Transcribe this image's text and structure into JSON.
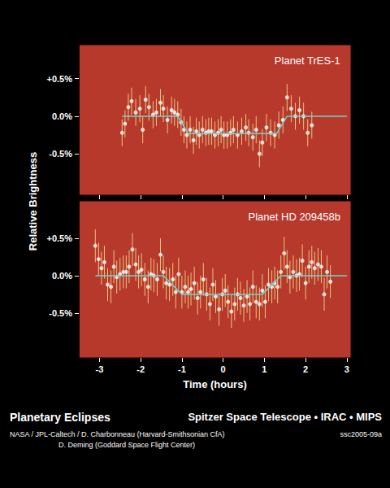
{
  "ylabel": "Relative Brightness",
  "footer": {
    "title": "Planetary Eclipses",
    "instrument": "Spitzer Space Telescope • IRAC • MIPS",
    "credits": [
      "NASA / JPL-Caltech / D. Charbonneau (Harvard-Smithsonian CfA)",
      "D. Deming (Goddard Space Flight Center)"
    ],
    "id": "ssc2005-09a"
  },
  "chart_data": [
    {
      "type": "scatter",
      "title": "Planet TrES-1",
      "xlim": [
        -3.5,
        3.1
      ],
      "xticks": [
        -3,
        -2,
        -1,
        0,
        1,
        2,
        3
      ],
      "ylim": [
        -1.05,
        0.95
      ],
      "yticks": [
        {
          "value": 0.5,
          "label": "+0.5%"
        },
        {
          "value": 0,
          "label": "0.0%"
        },
        {
          "value": -0.5,
          "label": "-0.5%"
        }
      ],
      "grid": false,
      "tick_labels": "y",
      "series": [
        {
          "type": "scatter",
          "marker": "circle",
          "color": "#ffffff",
          "x": [
            -2.45,
            -2.38,
            -2.3,
            -2.22,
            -2.12,
            -2.02,
            -1.95,
            -1.88,
            -1.8,
            -1.7,
            -1.62,
            -1.52,
            -1.45,
            -1.35,
            -1.25,
            -1.18,
            -1.1,
            -1.02,
            -0.95,
            -0.88,
            -0.8,
            -0.72,
            -0.65,
            -0.58,
            -0.5,
            -0.42,
            -0.35,
            -0.28,
            -0.2,
            -0.12,
            -0.05,
            0.02,
            0.1,
            0.18,
            0.25,
            0.35,
            0.45,
            0.55,
            0.62,
            0.72,
            0.8,
            0.88,
            0.95,
            1.05,
            1.15,
            1.25,
            1.35,
            1.45,
            1.55,
            1.65,
            1.75,
            1.85,
            1.95,
            2.05,
            2.15
          ],
          "values": [
            -0.22,
            -0.1,
            0.12,
            0.2,
            0.05,
            0.1,
            -0.18,
            0.22,
            0.12,
            0.02,
            0.05,
            0.18,
            0.1,
            -0.05,
            0.08,
            0.05,
            0.02,
            -0.08,
            -0.18,
            -0.25,
            -0.18,
            -0.32,
            -0.2,
            -0.25,
            -0.18,
            -0.22,
            -0.2,
            -0.2,
            -0.25,
            -0.22,
            -0.18,
            -0.25,
            -0.25,
            -0.22,
            -0.18,
            -0.25,
            -0.2,
            -0.15,
            -0.22,
            -0.28,
            -0.18,
            -0.5,
            -0.35,
            -0.15,
            -0.22,
            -0.25,
            -0.12,
            -0.05,
            0.25,
            0.1,
            0,
            0.08,
            0,
            -0.22,
            -0.12
          ],
          "errors": [
            0.18,
            0.18,
            0.18,
            0.18,
            0.18,
            0.18,
            0.18,
            0.18,
            0.18,
            0.18,
            0.18,
            0.18,
            0.18,
            0.18,
            0.18,
            0.18,
            0.18,
            0.18,
            0.18,
            0.18,
            0.18,
            0.18,
            0.18,
            0.18,
            0.18,
            0.18,
            0.18,
            0.18,
            0.18,
            0.18,
            0.18,
            0.18,
            0.18,
            0.18,
            0.18,
            0.18,
            0.18,
            0.18,
            0.18,
            0.18,
            0.18,
            0.18,
            0.18,
            0.18,
            0.18,
            0.18,
            0.18,
            0.18,
            0.18,
            0.18,
            0.18,
            0.18,
            0.18,
            0.18,
            0.18
          ]
        },
        {
          "type": "line",
          "line_style": "solid",
          "color": "#6fd3d0",
          "x": [
            -2.45,
            -1.1,
            -0.85,
            1.3,
            1.55,
            3.0
          ],
          "values": [
            0,
            0,
            -0.23,
            -0.23,
            0,
            0
          ]
        }
      ]
    },
    {
      "type": "scatter",
      "title": "Planet HD 209458b",
      "xlabel": "Time (hours)",
      "xlim": [
        -3.5,
        3.1
      ],
      "xticks": [
        -3,
        -2,
        -1,
        0,
        1,
        2,
        3
      ],
      "ylim": [
        -1.1,
        1.0
      ],
      "yticks": [
        {
          "value": 0.5,
          "label": "+0.5%"
        },
        {
          "value": 0,
          "label": "0.0%"
        },
        {
          "value": -0.5,
          "label": "-0.5%"
        }
      ],
      "grid": false,
      "series": [
        {
          "type": "scatter",
          "marker": "circle",
          "color": "#ffffff",
          "x": [
            -3.1,
            -3.02,
            -2.95,
            -2.88,
            -2.8,
            -2.72,
            -2.65,
            -2.58,
            -2.5,
            -2.42,
            -2.35,
            -2.28,
            -2.2,
            -2.12,
            -2.05,
            -1.98,
            -1.9,
            -1.82,
            -1.75,
            -1.68,
            -1.6,
            -1.52,
            -1.45,
            -1.38,
            -1.3,
            -1.22,
            -1.15,
            -1.08,
            -1,
            -0.92,
            -0.85,
            -0.78,
            -0.7,
            -0.62,
            -0.55,
            -0.48,
            -0.4,
            -0.32,
            -0.25,
            -0.18,
            -0.1,
            -0.02,
            0.05,
            0.12,
            0.2,
            0.28,
            0.35,
            0.42,
            0.5,
            0.58,
            0.65,
            0.72,
            0.8,
            0.88,
            0.95,
            1.02,
            1.1,
            1.18,
            1.25,
            1.32,
            1.4,
            1.48,
            1.55,
            1.62,
            1.7,
            1.78,
            1.85,
            1.92,
            2,
            2.08,
            2.15,
            2.22,
            2.3,
            2.38,
            2.45,
            2.52,
            2.6
          ],
          "values": [
            0.4,
            0.22,
            0.1,
            0.18,
            -0.12,
            -0.15,
            0.12,
            -0.02,
            0.02,
            0.05,
            0.05,
            0.12,
            0.35,
            0.15,
            0.05,
            0.08,
            -0.05,
            -0.15,
            0.02,
            0,
            -0.05,
            0.28,
            0.05,
            -0.1,
            -0.12,
            -0.05,
            -0.22,
            0.02,
            -0.22,
            -0.15,
            -0.22,
            -0.18,
            -0.1,
            -0.3,
            -0.22,
            -0.05,
            -0.25,
            -0.38,
            -0.12,
            -0.28,
            -0.45,
            -0.25,
            -0.2,
            -0.35,
            -0.48,
            -0.38,
            -0.25,
            -0.3,
            -0.4,
            -0.28,
            -0.38,
            -0.15,
            -0.35,
            -0.38,
            -0.2,
            -0.35,
            -0.12,
            -0.15,
            -0.1,
            -0.15,
            0.05,
            0.3,
            0.12,
            -0.02,
            0.05,
            0,
            0.02,
            0.2,
            -0.1,
            0.12,
            0.18,
            0.1,
            0.15,
            0.12,
            -0.25,
            0.05,
            -0.08
          ],
          "errors": [
            0.22,
            0.22,
            0.22,
            0.22,
            0.22,
            0.22,
            0.22,
            0.22,
            0.22,
            0.22,
            0.22,
            0.22,
            0.22,
            0.22,
            0.22,
            0.22,
            0.22,
            0.22,
            0.22,
            0.22,
            0.22,
            0.22,
            0.22,
            0.22,
            0.22,
            0.22,
            0.22,
            0.22,
            0.22,
            0.22,
            0.22,
            0.22,
            0.22,
            0.22,
            0.22,
            0.22,
            0.22,
            0.22,
            0.22,
            0.22,
            0.22,
            0.22,
            0.22,
            0.22,
            0.22,
            0.22,
            0.22,
            0.22,
            0.22,
            0.22,
            0.22,
            0.22,
            0.22,
            0.22,
            0.22,
            0.22,
            0.22,
            0.22,
            0.22,
            0.22,
            0.22,
            0.22,
            0.22,
            0.22,
            0.22,
            0.22,
            0.22,
            0.22,
            0.22,
            0.22,
            0.22,
            0.22,
            0.22,
            0.22,
            0.22,
            0.22,
            0.22
          ]
        },
        {
          "type": "line",
          "line_style": "solid",
          "color": "#6fd3d0",
          "x": [
            -3.1,
            -1.45,
            -1.0,
            0.95,
            1.4,
            3.0
          ],
          "values": [
            0,
            0,
            -0.25,
            -0.25,
            0,
            0
          ]
        }
      ]
    }
  ]
}
